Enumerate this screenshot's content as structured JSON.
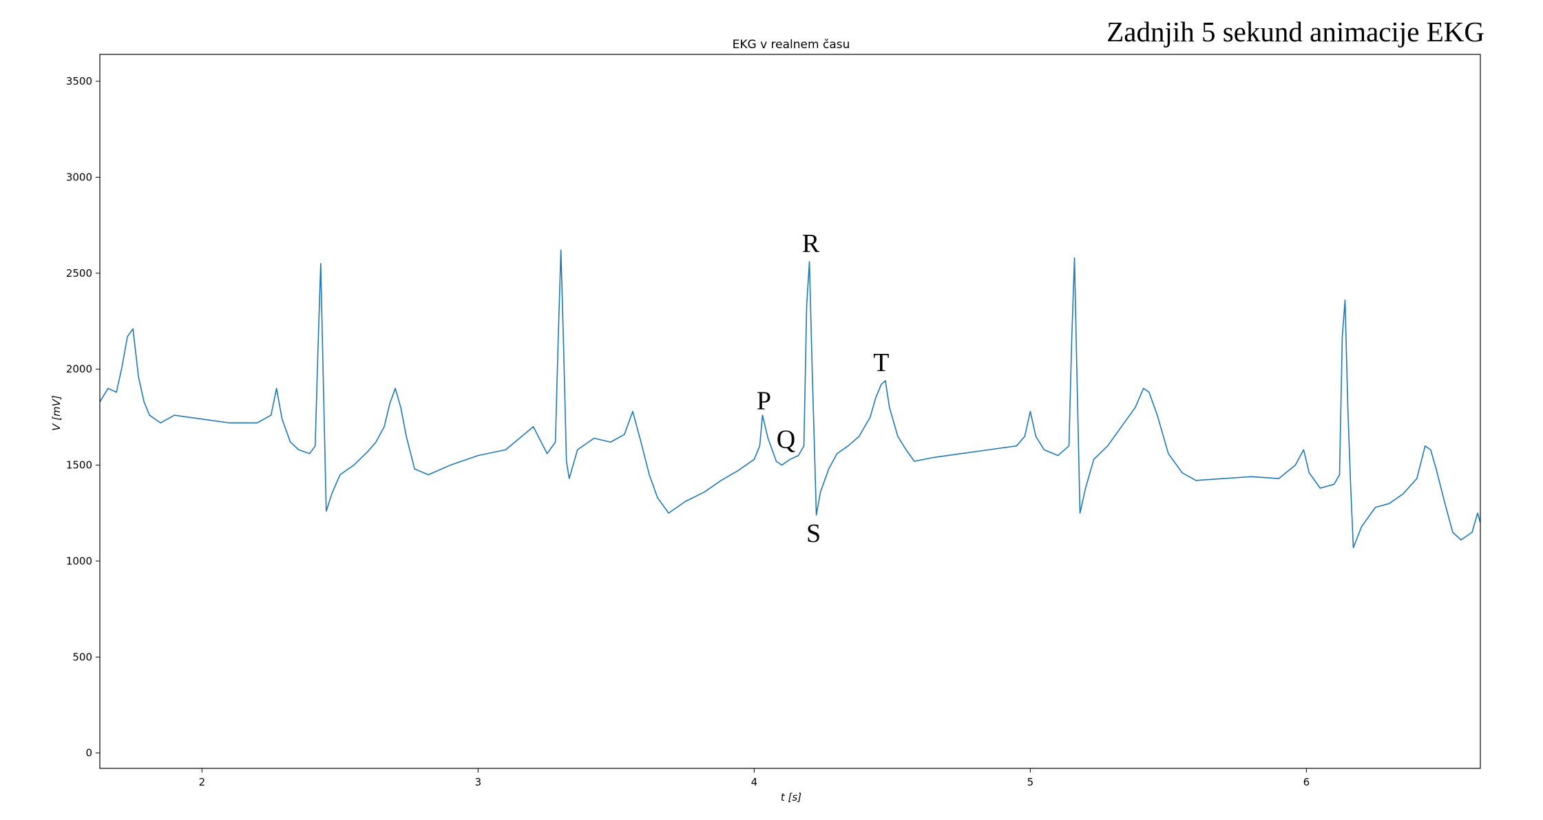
{
  "overlay_title": "Zadnjih 5 sekund animacije EKG",
  "chart_data": {
    "type": "line",
    "title": "EKG v realnem času",
    "xlabel": "t [s]",
    "ylabel": "V [mV]",
    "xlim": [
      1.63,
      6.63
    ],
    "ylim": [
      -80,
      3640
    ],
    "xticks": [
      2,
      3,
      4,
      5,
      6
    ],
    "yticks": [
      0,
      500,
      1000,
      1500,
      2000,
      2500,
      3000,
      3500
    ],
    "grid": false,
    "line_color": "#1f77b4",
    "series": [
      {
        "points": [
          [
            1.63,
            1830
          ],
          [
            1.66,
            1900
          ],
          [
            1.69,
            1880
          ],
          [
            1.71,
            2010
          ],
          [
            1.73,
            2170
          ],
          [
            1.75,
            2210
          ],
          [
            1.77,
            1960
          ],
          [
            1.79,
            1830
          ],
          [
            1.81,
            1760
          ],
          [
            1.85,
            1720
          ],
          [
            1.9,
            1760
          ],
          [
            2.0,
            1740
          ],
          [
            2.1,
            1720
          ],
          [
            2.2,
            1720
          ],
          [
            2.25,
            1760
          ],
          [
            2.27,
            1900
          ],
          [
            2.29,
            1740
          ],
          [
            2.32,
            1620
          ],
          [
            2.35,
            1580
          ],
          [
            2.39,
            1560
          ],
          [
            2.41,
            1600
          ],
          [
            2.42,
            2100
          ],
          [
            2.43,
            2550
          ],
          [
            2.44,
            1900
          ],
          [
            2.45,
            1260
          ],
          [
            2.47,
            1350
          ],
          [
            2.5,
            1450
          ],
          [
            2.55,
            1500
          ],
          [
            2.6,
            1570
          ],
          [
            2.63,
            1620
          ],
          [
            2.66,
            1700
          ],
          [
            2.68,
            1820
          ],
          [
            2.7,
            1900
          ],
          [
            2.72,
            1800
          ],
          [
            2.74,
            1650
          ],
          [
            2.77,
            1480
          ],
          [
            2.82,
            1450
          ],
          [
            2.9,
            1500
          ],
          [
            3.0,
            1550
          ],
          [
            3.1,
            1580
          ],
          [
            3.15,
            1640
          ],
          [
            3.2,
            1700
          ],
          [
            3.25,
            1560
          ],
          [
            3.28,
            1620
          ],
          [
            3.29,
            2150
          ],
          [
            3.3,
            2620
          ],
          [
            3.31,
            2100
          ],
          [
            3.32,
            1520
          ],
          [
            3.33,
            1430
          ],
          [
            3.36,
            1580
          ],
          [
            3.42,
            1640
          ],
          [
            3.48,
            1620
          ],
          [
            3.53,
            1660
          ],
          [
            3.56,
            1780
          ],
          [
            3.59,
            1620
          ],
          [
            3.62,
            1450
          ],
          [
            3.65,
            1330
          ],
          [
            3.69,
            1250
          ],
          [
            3.75,
            1310
          ],
          [
            3.82,
            1360
          ],
          [
            3.88,
            1420
          ],
          [
            3.94,
            1470
          ],
          [
            4.0,
            1530
          ],
          [
            4.02,
            1600
          ],
          [
            4.03,
            1760
          ],
          [
            4.05,
            1640
          ],
          [
            4.08,
            1520
          ],
          [
            4.1,
            1500
          ],
          [
            4.13,
            1530
          ],
          [
            4.16,
            1550
          ],
          [
            4.18,
            1600
          ],
          [
            4.19,
            2330
          ],
          [
            4.2,
            2560
          ],
          [
            4.21,
            2000
          ],
          [
            4.22,
            1500
          ],
          [
            4.225,
            1240
          ],
          [
            4.24,
            1360
          ],
          [
            4.27,
            1480
          ],
          [
            4.3,
            1560
          ],
          [
            4.34,
            1600
          ],
          [
            4.38,
            1650
          ],
          [
            4.42,
            1750
          ],
          [
            4.44,
            1850
          ],
          [
            4.46,
            1920
          ],
          [
            4.475,
            1940
          ],
          [
            4.49,
            1800
          ],
          [
            4.52,
            1650
          ],
          [
            4.55,
            1580
          ],
          [
            4.58,
            1520
          ],
          [
            4.65,
            1540
          ],
          [
            4.75,
            1560
          ],
          [
            4.85,
            1580
          ],
          [
            4.95,
            1600
          ],
          [
            4.98,
            1650
          ],
          [
            5.0,
            1780
          ],
          [
            5.02,
            1650
          ],
          [
            5.05,
            1580
          ],
          [
            5.1,
            1550
          ],
          [
            5.14,
            1600
          ],
          [
            5.15,
            2150
          ],
          [
            5.16,
            2580
          ],
          [
            5.17,
            1900
          ],
          [
            5.18,
            1250
          ],
          [
            5.2,
            1380
          ],
          [
            5.23,
            1530
          ],
          [
            5.28,
            1600
          ],
          [
            5.33,
            1700
          ],
          [
            5.38,
            1800
          ],
          [
            5.41,
            1900
          ],
          [
            5.43,
            1880
          ],
          [
            5.46,
            1760
          ],
          [
            5.5,
            1560
          ],
          [
            5.55,
            1460
          ],
          [
            5.6,
            1420
          ],
          [
            5.7,
            1430
          ],
          [
            5.8,
            1440
          ],
          [
            5.9,
            1430
          ],
          [
            5.96,
            1500
          ],
          [
            5.99,
            1580
          ],
          [
            6.01,
            1460
          ],
          [
            6.05,
            1380
          ],
          [
            6.1,
            1400
          ],
          [
            6.12,
            1450
          ],
          [
            6.13,
            2170
          ],
          [
            6.14,
            2360
          ],
          [
            6.15,
            1800
          ],
          [
            6.16,
            1400
          ],
          [
            6.17,
            1070
          ],
          [
            6.2,
            1180
          ],
          [
            6.25,
            1280
          ],
          [
            6.3,
            1300
          ],
          [
            6.35,
            1350
          ],
          [
            6.4,
            1430
          ],
          [
            6.43,
            1600
          ],
          [
            6.45,
            1580
          ],
          [
            6.47,
            1480
          ],
          [
            6.5,
            1310
          ],
          [
            6.53,
            1150
          ],
          [
            6.56,
            1110
          ],
          [
            6.6,
            1150
          ],
          [
            6.62,
            1250
          ],
          [
            6.63,
            1200
          ]
        ]
      }
    ],
    "annotations": [
      {
        "text": "P",
        "x": 4.035,
        "y": 1790
      },
      {
        "text": "Q",
        "x": 4.115,
        "y": 1590
      },
      {
        "text": "R",
        "x": 4.205,
        "y": 2610
      },
      {
        "text": "T",
        "x": 4.46,
        "y": 1990
      },
      {
        "text": "S",
        "x": 4.215,
        "y": 1100
      }
    ]
  }
}
